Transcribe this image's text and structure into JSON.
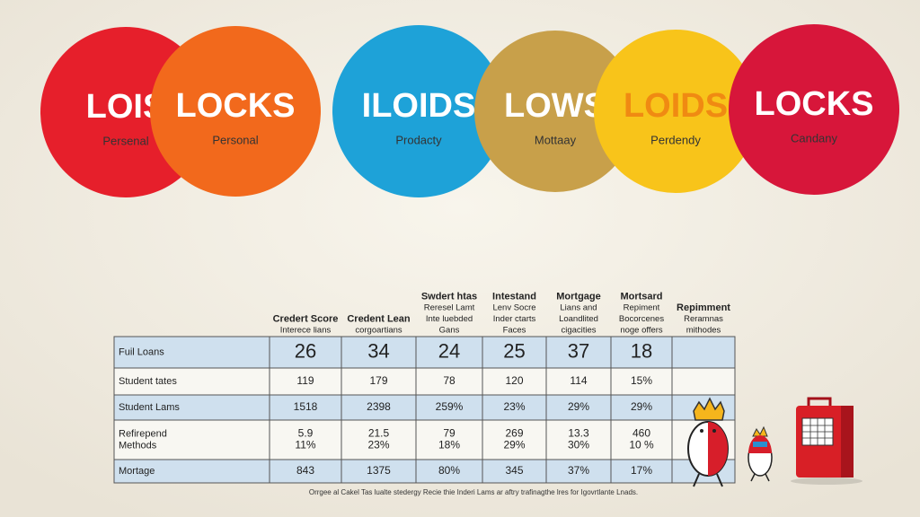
{
  "circles": [
    {
      "title": "LOIS",
      "subtitle": "Persenal",
      "color": "#e61f2b",
      "text_color": "#ffffff"
    },
    {
      "title": "LOCKS",
      "subtitle": "Personal",
      "color": "#f2691c",
      "text_color": "#ffffff"
    },
    {
      "title": "ILOIDS",
      "subtitle": "Prodacty",
      "color": "#1ea2d8",
      "text_color": "#ffffff"
    },
    {
      "title": "LOWS",
      "subtitle": "Mottaay",
      "color": "#c8a04a",
      "text_color": "#ffffff"
    },
    {
      "title": "LOIDS",
      "subtitle": "Perdendy",
      "color": "#f8c41a",
      "text_color": "#f08a12"
    },
    {
      "title": "LOCKS",
      "subtitle": "Candany",
      "color": "#d7163a",
      "text_color": "#ffffff"
    }
  ],
  "table": {
    "headers": [
      [
        "Credert Score",
        "Interece lians"
      ],
      [
        "Credent Lean",
        "corgoartians"
      ],
      [
        "Swdert htas",
        "Reresel Lamt",
        "Inte luebded",
        "Gans"
      ],
      [
        "Intestand",
        "Lenv Socre",
        "Inder ctarts",
        "Faces"
      ],
      [
        "Mortgage",
        "Lians and",
        "Loandlited",
        "cigacities"
      ],
      [
        "Mortsard",
        "Repiment",
        "Bocorcenes",
        "noge offers"
      ],
      [
        "Repimment",
        "Reramnas",
        "mithodes"
      ]
    ],
    "rows": [
      [
        [
          "Fuil Loans"
        ],
        [
          "26"
        ],
        [
          "34"
        ],
        [
          "24"
        ],
        [
          "25"
        ],
        [
          "37"
        ],
        [
          "18"
        ],
        []
      ],
      [
        [
          "Student tates"
        ],
        [
          "119"
        ],
        [
          "179"
        ],
        [
          "78"
        ],
        [
          "120"
        ],
        [
          "114"
        ],
        [
          "15%"
        ],
        []
      ],
      [
        [
          "Student Lams"
        ],
        [
          "1518"
        ],
        [
          "2398"
        ],
        [
          "259%"
        ],
        [
          "23%"
        ],
        [
          "29%"
        ],
        [
          "29%"
        ],
        []
      ],
      [
        [
          "Refirepend",
          "Methods"
        ],
        [
          "5.9",
          "11%"
        ],
        [
          "21.5",
          "23%"
        ],
        [
          "79",
          "18%"
        ],
        [
          "269",
          "29%"
        ],
        [
          "13.3",
          "30%"
        ],
        [
          "460",
          "10 %"
        ],
        []
      ],
      [
        [
          "Mortage"
        ],
        [
          "843"
        ],
        [
          "1375"
        ],
        [
          "80%"
        ],
        [
          "345"
        ],
        [
          "37%"
        ],
        [
          "17%"
        ],
        []
      ]
    ]
  },
  "footer": "Orrgee al Cakel Tas lualte stedergy Recie thie Inderi Lams ar aftry trafinagthe lres for Igovrtlante Lnads."
}
